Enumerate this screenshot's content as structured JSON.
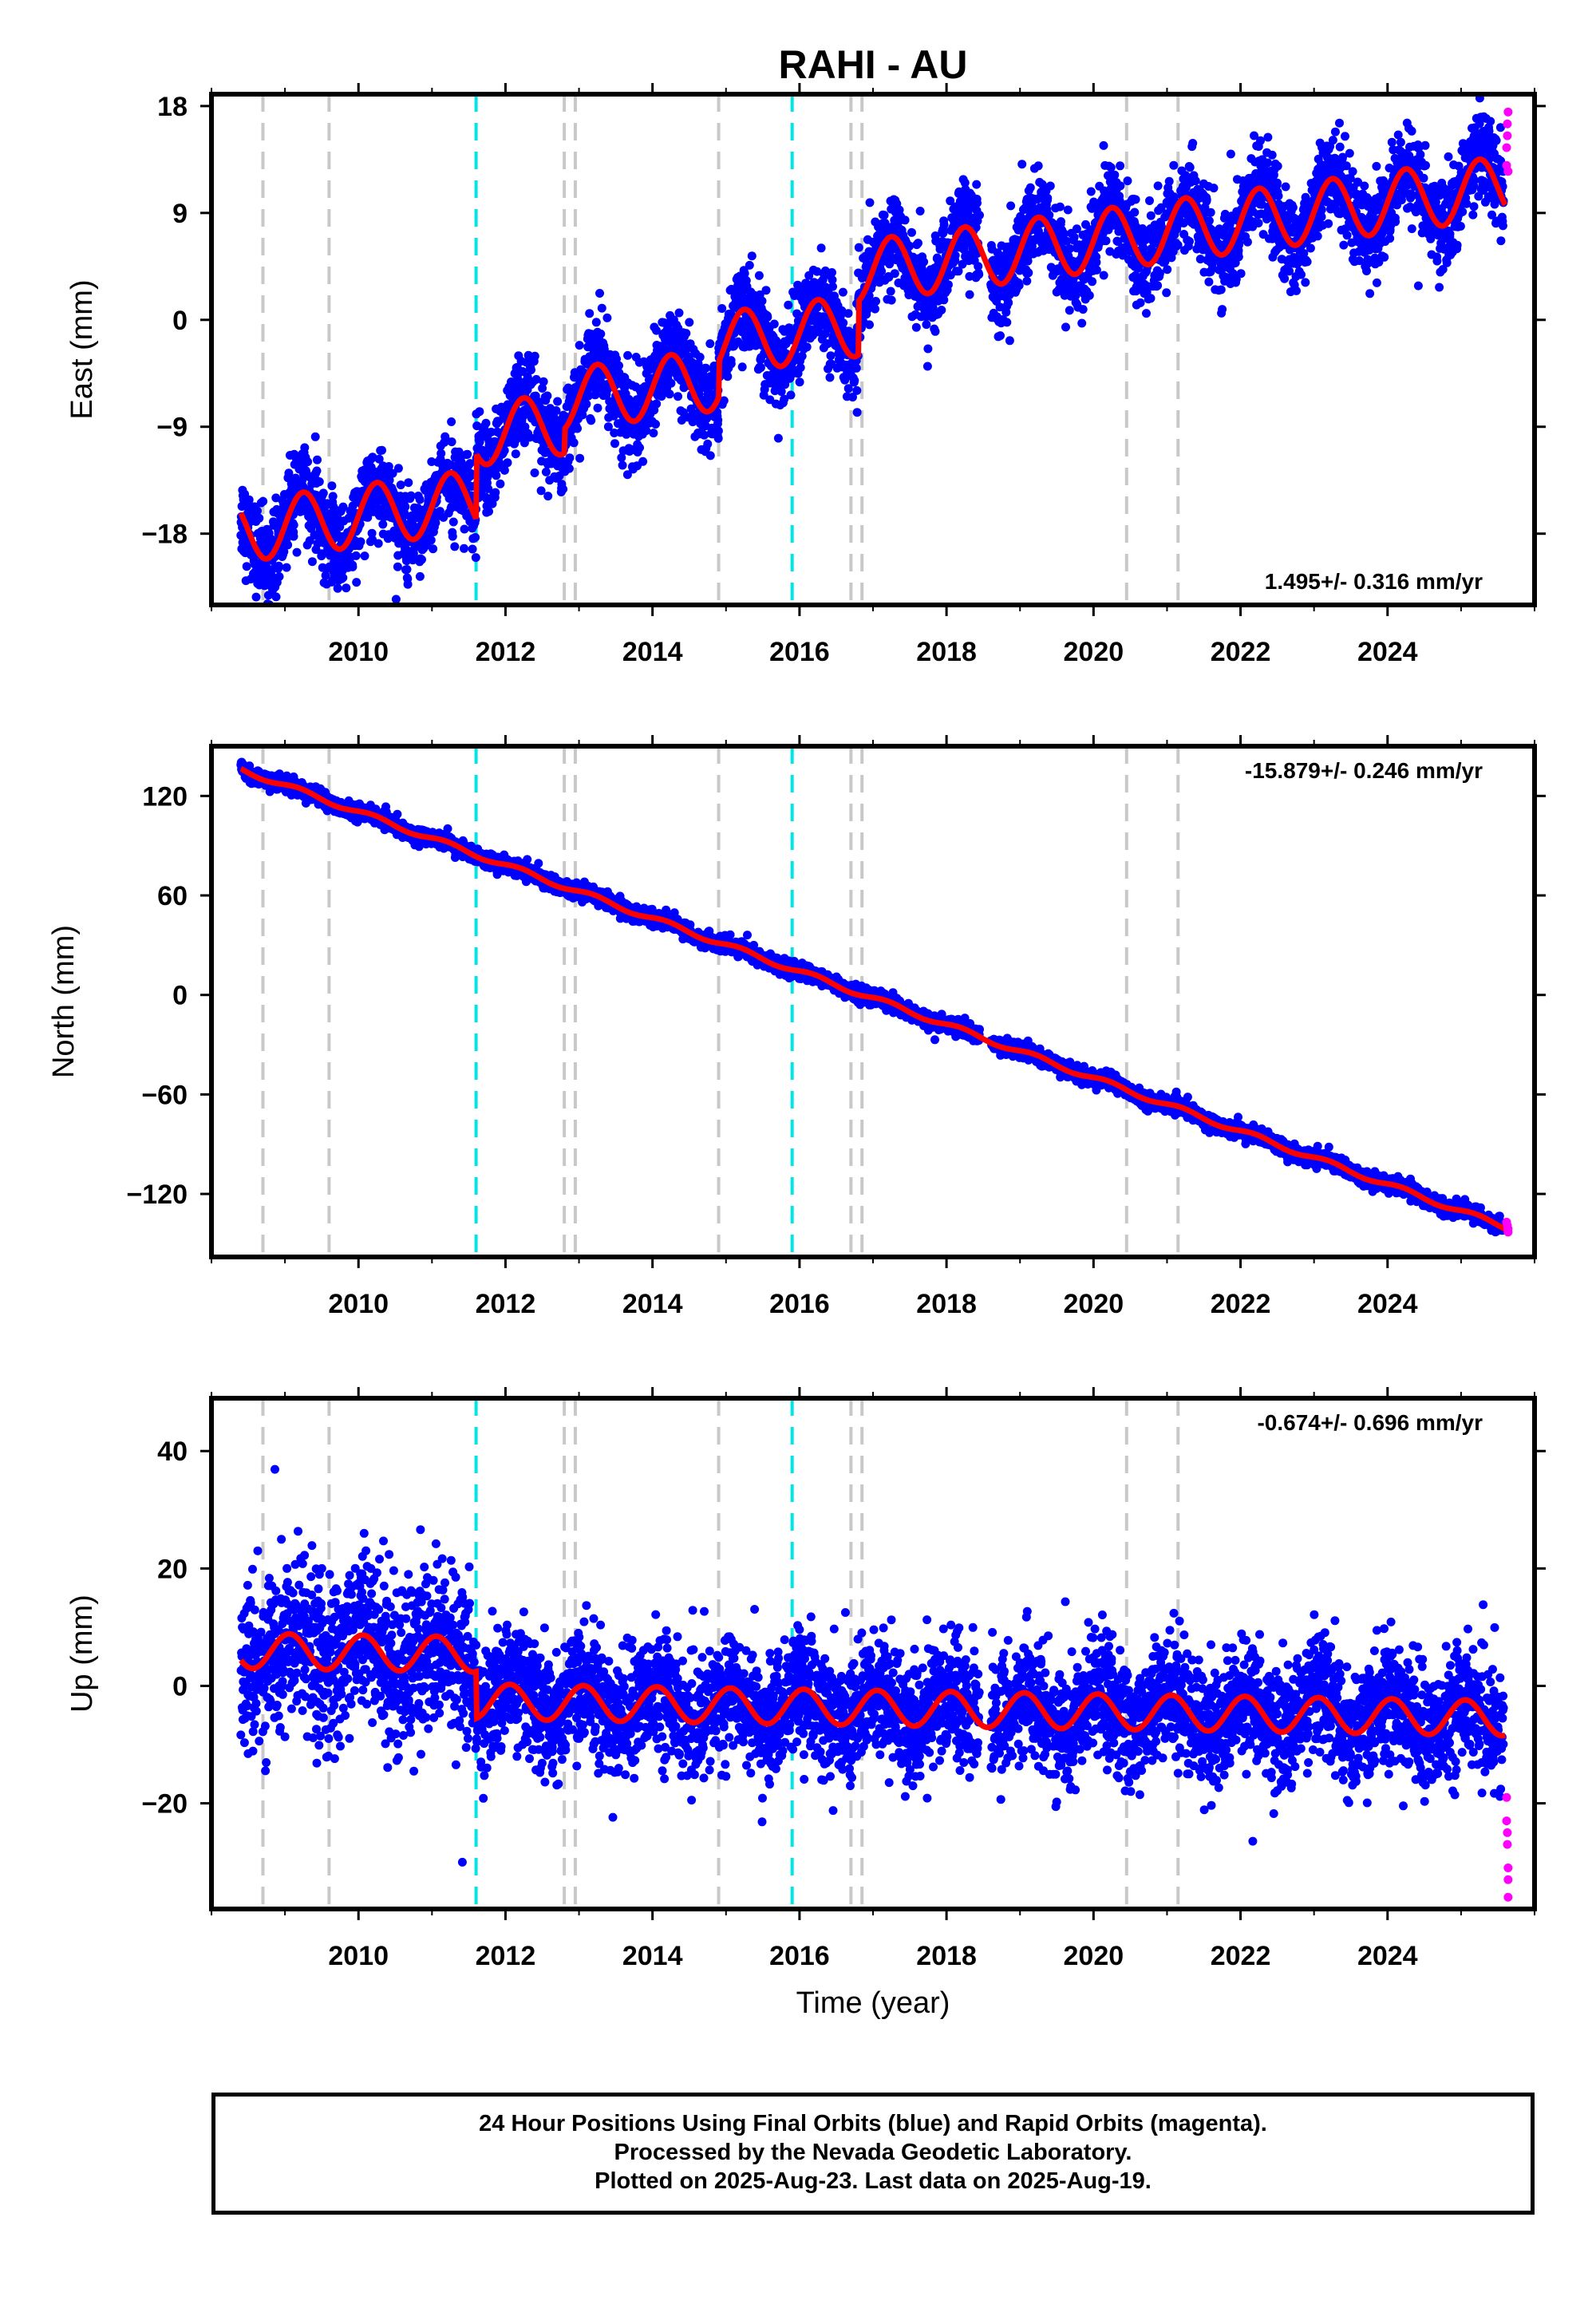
{
  "figure": {
    "title": "RAHI - AU",
    "footer": [
      "24 Hour Positions Using Final Orbits (blue) and Rapid Orbits (magenta).",
      "Processed by the Nevada Geodetic Laboratory.",
      "Plotted on 2025-Aug-23. Last data on 2025-Aug-19."
    ]
  },
  "chart_data": [
    {
      "type": "scatter",
      "title": "RAHI - AU",
      "ylabel": "East (mm)",
      "xlabel": "",
      "xlim": [
        2008.0,
        2026.0
      ],
      "ylim": [
        -24,
        19
      ],
      "xticks": [
        "2010",
        "2012",
        "2014",
        "2016",
        "2018",
        "2020",
        "2022",
        "2024"
      ],
      "yticks": [
        "18",
        "9",
        "0",
        "−9",
        "−18"
      ],
      "ytick_values": [
        18,
        9,
        0,
        -9,
        -18
      ],
      "rate_label": "1.495+/- 0.316 mm/yr",
      "rate_position": "bottom-right",
      "model": {
        "start": [
          2008.4,
          -17.8
        ],
        "end": [
          2025.6,
          11.2
        ],
        "seasonal_amplitude": 2.6,
        "seasonal_phase": 0.0
      },
      "offsets": [
        [
          2011.6,
          5.5
        ],
        [
          2012.8,
          2.0
        ],
        [
          2014.9,
          3.0
        ],
        [
          2016.8,
          4.5
        ]
      ],
      "scatter_sigma": 1.8,
      "rapid_points": [
        [
          2025.62,
          13.0
        ],
        [
          2025.62,
          14.5
        ],
        [
          2025.63,
          15.5
        ],
        [
          2025.63,
          16.5
        ],
        [
          2025.64,
          17.5
        ],
        [
          2025.64,
          12.5
        ]
      ]
    },
    {
      "type": "scatter",
      "ylabel": "North (mm)",
      "xlabel": "",
      "xlim": [
        2008.0,
        2026.0
      ],
      "ylim": [
        -158,
        150
      ],
      "xticks": [
        "2010",
        "2012",
        "2014",
        "2016",
        "2018",
        "2020",
        "2022",
        "2024"
      ],
      "yticks": [
        "120",
        "60",
        "0",
        "−60",
        "−120"
      ],
      "ytick_values": [
        120,
        60,
        0,
        -60,
        -120
      ],
      "rate_label": "-15.879+/- 0.246 mm/yr",
      "rate_position": "top-right",
      "model": {
        "start": [
          2008.4,
          136.0
        ],
        "end": [
          2025.6,
          -140.0
        ],
        "seasonal_amplitude": 1.5,
        "seasonal_phase": 0.3
      },
      "offsets": [],
      "scatter_sigma": 2.2,
      "rapid_points": [
        [
          2025.62,
          -137
        ],
        [
          2025.63,
          -139
        ],
        [
          2025.64,
          -141
        ],
        [
          2025.64,
          -143
        ]
      ]
    },
    {
      "type": "scatter",
      "ylabel": "Up (mm)",
      "xlabel": "Time (year)",
      "xlim": [
        2008.0,
        2026.0
      ],
      "ylim": [
        -38,
        49
      ],
      "xticks": [
        "2010",
        "2012",
        "2014",
        "2016",
        "2018",
        "2020",
        "2022",
        "2024"
      ],
      "yticks": [
        "40",
        "20",
        "0",
        "−20"
      ],
      "ytick_values": [
        40,
        20,
        0,
        -20
      ],
      "rate_label": "-0.674+/- 0.696 mm/yr",
      "rate_position": "top-right",
      "model": {
        "start": [
          2008.4,
          6.0
        ],
        "end": [
          2025.6,
          -5.5
        ],
        "seasonal_amplitude": 3.0,
        "seasonal_phase": 1.2
      },
      "offsets": [
        [
          2011.6,
          -8.0
        ]
      ],
      "scatter_sigma": 5.0,
      "rapid_points": [
        [
          2025.62,
          -19
        ],
        [
          2025.62,
          -23
        ],
        [
          2025.63,
          -25
        ],
        [
          2025.63,
          -27
        ],
        [
          2025.64,
          -31
        ],
        [
          2025.64,
          -33
        ],
        [
          2025.64,
          -36
        ]
      ]
    }
  ],
  "events": {
    "equipment_changes": [
      2008.7,
      2009.6,
      2012.8,
      2012.95,
      2014.9,
      2016.7,
      2016.85,
      2020.45,
      2021.15
    ],
    "earthquakes": [
      2011.6,
      2015.9
    ],
    "equipment_color": "#c8c8c8",
    "earthquake_color": "#00e5e5"
  },
  "colors": {
    "final_orbits": "#0000ff",
    "rapid_orbits": "#ff00ff",
    "model": "#ff0000"
  }
}
